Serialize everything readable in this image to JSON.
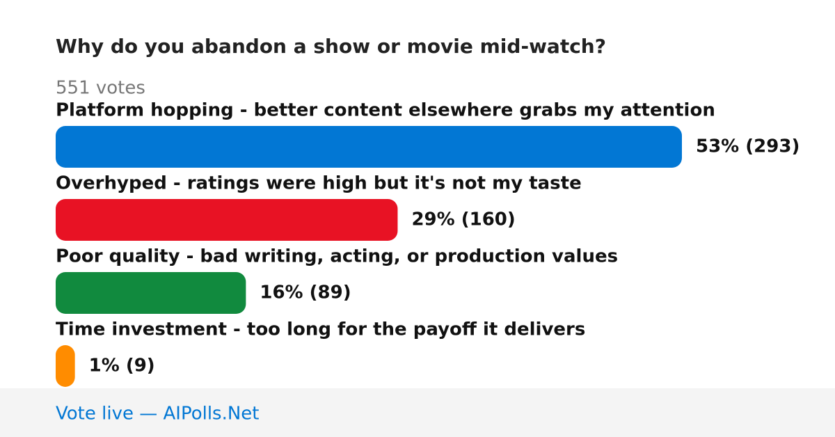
{
  "chart_data": {
    "type": "bar",
    "orientation": "horizontal",
    "title": "Why do you abandon a show or movie mid-watch?",
    "subtitle": "551 votes",
    "categories": [
      "Platform hopping - better content elsewhere grabs my attention",
      "Overhyped - ratings were high but it's not my taste",
      "Poor quality - bad writing, acting, or production values",
      "Time investment - too long for the payoff it delivers"
    ],
    "values": [
      293,
      160,
      89,
      9
    ],
    "value_labels": [
      "53% (293)",
      "29% (160)",
      "16% (89)",
      "1% (9)"
    ],
    "colors": [
      "#0277d4",
      "#e81224",
      "#118a3e",
      "#ff8c00"
    ],
    "footer": "Vote live — AIPolls.Net"
  }
}
